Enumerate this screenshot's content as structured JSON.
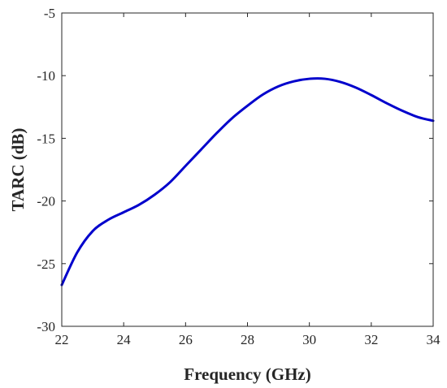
{
  "chart_data": {
    "type": "line",
    "title": "",
    "xlabel": "Frequency (GHz)",
    "ylabel": "TARC (dB)",
    "xlim": [
      22,
      34
    ],
    "ylim": [
      -30,
      -5
    ],
    "xticks": [
      22,
      24,
      26,
      28,
      30,
      32,
      34
    ],
    "yticks": [
      -5,
      -10,
      -15,
      -20,
      -25,
      -30
    ],
    "grid": false,
    "legend": "none",
    "series": [
      {
        "color": "#0000cc",
        "x": [
          22,
          22.5,
          23,
          23.5,
          24,
          24.5,
          25,
          25.5,
          26,
          26.5,
          27,
          27.5,
          28,
          28.5,
          29,
          29.5,
          30,
          30.5,
          31,
          31.5,
          32,
          32.5,
          33,
          33.5,
          34
        ],
        "y": [
          -26.7,
          -24.1,
          -22.4,
          -21.5,
          -20.9,
          -20.3,
          -19.5,
          -18.5,
          -17.2,
          -15.9,
          -14.6,
          -13.4,
          -12.4,
          -11.5,
          -10.85,
          -10.45,
          -10.25,
          -10.25,
          -10.5,
          -10.95,
          -11.55,
          -12.2,
          -12.8,
          -13.3,
          -13.6
        ]
      }
    ]
  }
}
